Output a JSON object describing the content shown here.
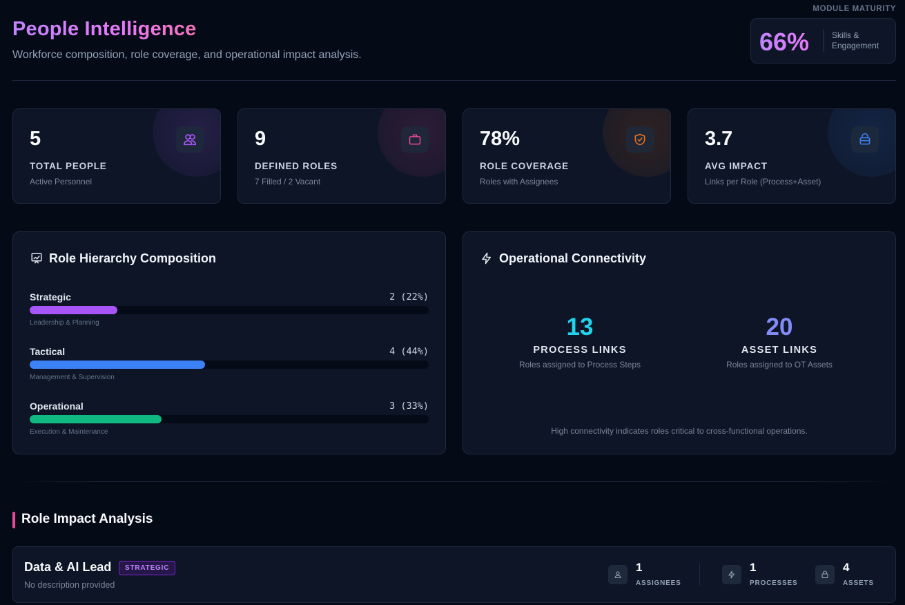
{
  "header": {
    "title": "People Intelligence",
    "subtitle": "Workforce composition, role coverage, and operational impact analysis.",
    "maturity_label": "MODULE MATURITY",
    "maturity_value": "66%",
    "maturity_desc": "Skills & Engagement"
  },
  "stats": [
    {
      "value": "5",
      "label": "TOTAL PEOPLE",
      "sub": "Active Personnel",
      "icon": "users-icon",
      "color": "#a855f7"
    },
    {
      "value": "9",
      "label": "DEFINED ROLES",
      "sub": "7 Filled / 2 Vacant",
      "icon": "briefcase-icon",
      "color": "#ec4899"
    },
    {
      "value": "78%",
      "label": "ROLE COVERAGE",
      "sub": "Roles with Assignees",
      "icon": "shield-check-icon",
      "color": "#f97316"
    },
    {
      "value": "3.7",
      "label": "AVG IMPACT",
      "sub": "Links per Role (Process+Asset)",
      "icon": "database-icon",
      "color": "#3b82f6"
    }
  ],
  "hierarchy": {
    "title": "Role Hierarchy Composition",
    "icon": "presentation-chart-icon",
    "tiers": [
      {
        "name": "Strategic",
        "count": "2 (22%)",
        "fraction": 0.22,
        "desc": "Leadership & Planning",
        "color": "#a855f7"
      },
      {
        "name": "Tactical",
        "count": "4 (44%)",
        "fraction": 0.44,
        "desc": "Management & Supervision",
        "color": "#3b82f6"
      },
      {
        "name": "Operational",
        "count": "3 (33%)",
        "fraction": 0.33,
        "desc": "Execution & Maintenance",
        "color": "#10b981"
      }
    ]
  },
  "connectivity": {
    "title": "Operational Connectivity",
    "icon": "lightning-icon",
    "process": {
      "value": "13",
      "label": "PROCESS LINKS",
      "sub": "Roles assigned to Process Steps",
      "color": "#22d3ee"
    },
    "asset": {
      "value": "20",
      "label": "ASSET LINKS",
      "sub": "Roles assigned to OT Assets",
      "color": "#818cf8"
    },
    "note": "High connectivity indicates roles critical to cross-functional operations."
  },
  "impact": {
    "title": "Role Impact Analysis",
    "roles": [
      {
        "name": "Data & AI Lead",
        "badge": "STRATEGIC",
        "desc": "No description provided",
        "metrics": [
          {
            "value": "1",
            "label": "ASSIGNEES",
            "icon": "user-icon"
          },
          {
            "value": "1",
            "label": "PROCESSES",
            "icon": "lightning-icon"
          },
          {
            "value": "4",
            "label": "ASSETS",
            "icon": "lock-icon"
          }
        ]
      }
    ]
  }
}
